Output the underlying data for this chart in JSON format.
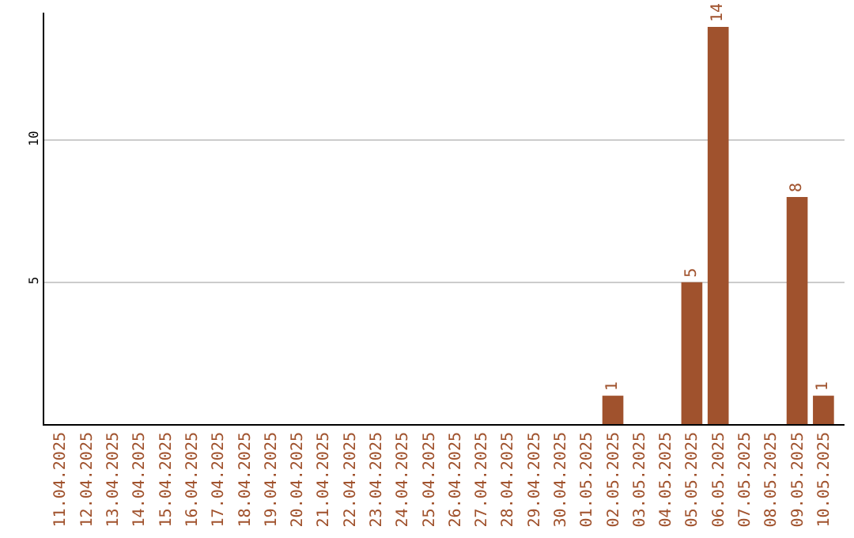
{
  "chart_data": {
    "type": "bar",
    "categories": [
      "11.04.2025",
      "12.04.2025",
      "13.04.2025",
      "14.04.2025",
      "15.04.2025",
      "16.04.2025",
      "17.04.2025",
      "18.04.2025",
      "19.04.2025",
      "20.04.2025",
      "21.04.2025",
      "22.04.2025",
      "23.04.2025",
      "24.04.2025",
      "25.04.2025",
      "26.04.2025",
      "27.04.2025",
      "28.04.2025",
      "29.04.2025",
      "30.04.2025",
      "01.05.2025",
      "02.05.2025",
      "03.05.2025",
      "04.05.2025",
      "05.05.2025",
      "06.05.2025",
      "07.05.2025",
      "08.05.2025",
      "09.05.2025",
      "10.05.2025"
    ],
    "values": [
      0,
      0,
      0,
      0,
      0,
      0,
      0,
      0,
      0,
      0,
      0,
      0,
      0,
      0,
      0,
      0,
      0,
      0,
      0,
      0,
      0,
      1,
      0,
      0,
      5,
      14,
      0,
      0,
      8,
      1
    ],
    "value_labels": [
      null,
      null,
      null,
      null,
      null,
      null,
      null,
      null,
      null,
      null,
      null,
      null,
      null,
      null,
      null,
      null,
      null,
      null,
      null,
      null,
      null,
      "1",
      null,
      null,
      "5",
      "14",
      null,
      null,
      "8",
      "1"
    ],
    "color": "#a0522d",
    "ylim": [
      0,
      14.5
    ],
    "yticks": [
      5,
      10
    ],
    "grid": "y",
    "legend": false
  }
}
